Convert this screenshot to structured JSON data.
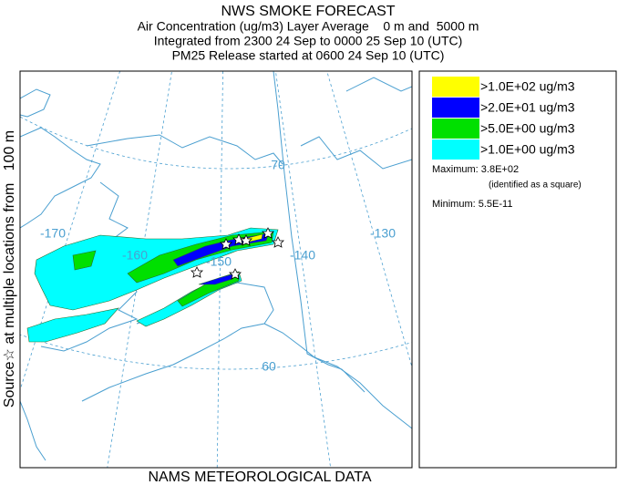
{
  "title": "NWS SMOKE FORECAST",
  "subtitle_lines": [
    "Air Concentration (ug/m3) Layer Average    0 m and  5000 m",
    "Integrated from 2300 24 Sep to 0000 25 Sep 10 (UTC)",
    "PM25 Release started at 0600 24 Sep 10 (UTC)"
  ],
  "side_label": "Source☆ at multiple locations from   100 m",
  "footer": "NAMS METEOROLOGICAL DATA",
  "legend": {
    "items": [
      {
        "label": ">1.0E+02 ug/m3",
        "color": "#ffff00"
      },
      {
        "label": ">2.0E+01 ug/m3",
        "color": "#0000ff"
      },
      {
        "label": ">5.0E+00 ug/m3",
        "color": "#00e000"
      },
      {
        "label": ">1.0E+00 ug/m3",
        "color": "#00ffff"
      }
    ],
    "maximum": "Maximum: 3.8E+02",
    "maximum_note": "(identified as a square)",
    "minimum": "Minimum: 5.5E-11"
  },
  "map": {
    "graticule_labels": [
      "-170",
      "-160",
      "-150",
      "-140",
      "-130",
      "70",
      "60"
    ]
  }
}
